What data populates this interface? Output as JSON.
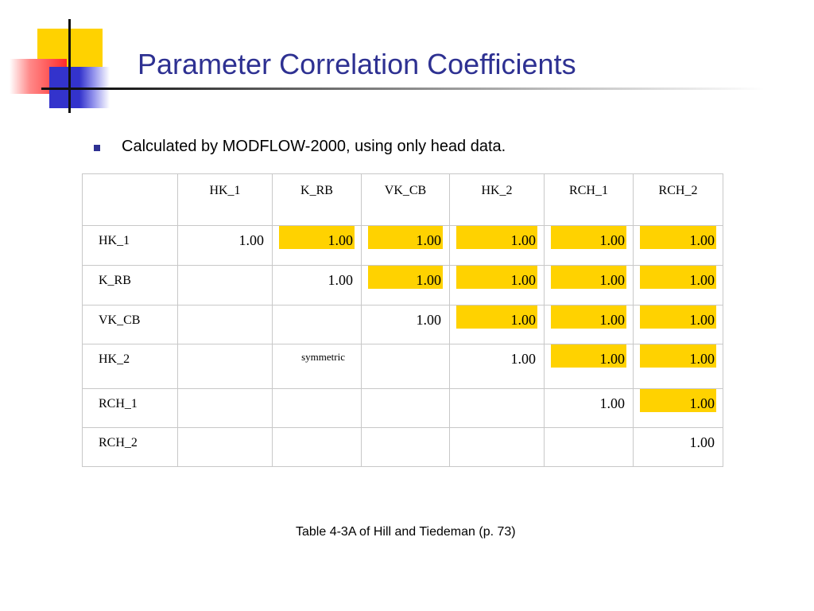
{
  "title": "Parameter Correlation Coefficients",
  "bullet": "Calculated by MODFLOW-2000, using only head data.",
  "table": {
    "columns": [
      "",
      "HK_1",
      "K_RB",
      "VK_CB",
      "HK_2",
      "RCH_1",
      "RCH_2"
    ],
    "rows": [
      {
        "label": "HK_1",
        "cells": [
          "1.00",
          "1.00",
          "1.00",
          "1.00",
          "1.00",
          "1.00"
        ]
      },
      {
        "label": "K_RB",
        "cells": [
          "",
          "1.00",
          "1.00",
          "1.00",
          "1.00",
          "1.00"
        ]
      },
      {
        "label": "VK_CB",
        "cells": [
          "",
          "",
          "1.00",
          "1.00",
          "1.00",
          "1.00"
        ]
      },
      {
        "label": "HK_2",
        "cells": [
          "",
          "symmetric",
          "",
          "1.00",
          "1.00",
          "1.00"
        ]
      },
      {
        "label": "RCH_1",
        "cells": [
          "",
          "",
          "",
          "",
          "1.00",
          "1.00"
        ]
      },
      {
        "label": "RCH_2",
        "cells": [
          "",
          "",
          "",
          "",
          "",
          "1.00"
        ]
      }
    ],
    "highlight_color": "#FFD200"
  },
  "caption": "Table 4-3A of Hill and Tiedeman (p. 73)",
  "colors": {
    "title": "#2E3192",
    "accent_yellow": "#FFD200",
    "accent_red": "#FF2A2A",
    "accent_blue": "#3333CC"
  }
}
